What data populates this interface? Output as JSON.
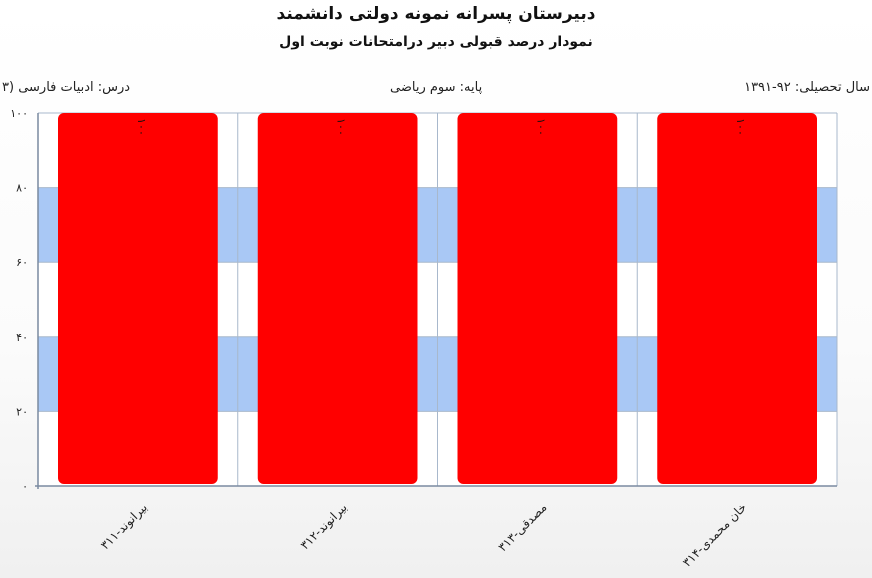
{
  "header": {
    "title": "دبیرستان پسرانه نمونه دولتی دانشمند",
    "subtitle": "نمودار درصد قبولی دبیر درامتحانات نوبت اول",
    "year": "سال تحصیلی: ۹۲-۱۳۹۱",
    "grade": "پایه: سوم ریاضی",
    "course": "درس: ادبیات فارسی (۳"
  },
  "chart_data": {
    "type": "bar",
    "categories": [
      "بیرانوند-۳۱۱",
      "بیرانوند-۳۱۲",
      "مصدقی-۳۱۳",
      "خان محمدی-۳۱۴"
    ],
    "values": [
      100,
      100,
      100,
      100
    ],
    "data_labels": [
      "۱۰۰",
      "۱۰۰",
      "۱۰۰",
      "۱۰۰"
    ],
    "yticks": [
      0,
      20,
      40,
      60,
      80,
      100
    ],
    "ytick_labels": [
      "۰",
      "۲۰",
      "۴۰",
      "۶۰",
      "۸۰",
      "۱۰۰"
    ],
    "ylim": [
      0,
      100
    ],
    "title": "",
    "xlabel": "",
    "ylabel": "",
    "grid": true,
    "colors": {
      "bar": "#ff0000",
      "band": "#a9c8f5",
      "grid": "#a8b8cc",
      "axis": "#7a8aa0"
    }
  }
}
